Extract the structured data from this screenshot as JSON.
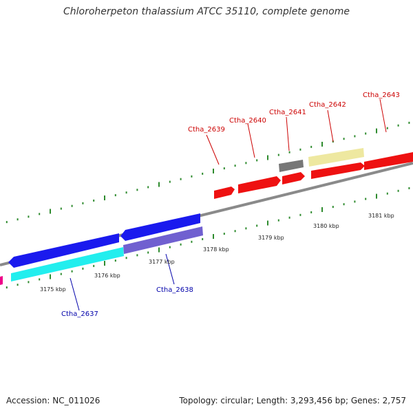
{
  "title": "Chloroherpeton thalassium ATCC 35110, complete genome",
  "footer": {
    "accession": "Accession: NC_011026",
    "summary": "Topology: circular; Length: 3,293,456 bp; Genes: 2,757"
  },
  "colors": {
    "backbone": "#888888",
    "tick_major": "#2e8b2e",
    "tick_minor": "#2e8b2e",
    "label_forward": "#cc0000",
    "label_reverse": "#0000aa",
    "gene_forward": "#ee1111",
    "gene_reverse_blue": "#1a1aee",
    "gene_cyan": "#22eeee",
    "gene_lavender": "#7060d0",
    "gene_gray": "#777777",
    "gene_khaki": "#eee8a0",
    "gene_magenta": "#ee0088"
  },
  "scale_labels": [
    "3175 kbp",
    "3176 kbp",
    "3177 kbp",
    "3178 kbp",
    "3179 kbp",
    "3180 kbp",
    "3181 kbp"
  ],
  "gene_labels": [
    {
      "text": "Ctha_2637",
      "strand": "reverse"
    },
    {
      "text": "Ctha_2638",
      "strand": "reverse"
    },
    {
      "text": "Ctha_2639",
      "strand": "forward"
    },
    {
      "text": "Ctha_2640",
      "strand": "forward"
    },
    {
      "text": "Ctha_2641",
      "strand": "forward"
    },
    {
      "text": "Ctha_2642",
      "strand": "forward"
    },
    {
      "text": "Ctha_2643",
      "strand": "forward"
    }
  ]
}
